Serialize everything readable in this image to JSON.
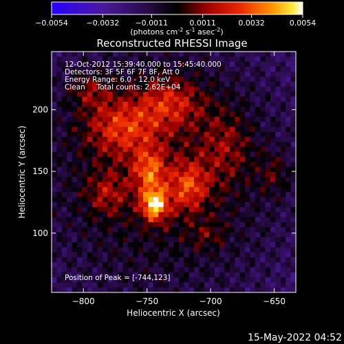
{
  "colorbar": {
    "ticks": [
      "-0.0054",
      "-0.0032",
      "-0.0011",
      "0.0011",
      "0.0032",
      "0.0054"
    ],
    "unit_text": "(photons cm",
    "unit_sup1": "-2",
    "unit_mid": " s",
    "unit_sup2": "-1",
    "unit_end": " asec",
    "unit_sup3": "-2",
    "unit_close": ")"
  },
  "chart_data": {
    "type": "heatmap",
    "title": "Reconstructed RHESSI Image",
    "xlabel": "Heliocentric X (arcsec)",
    "ylabel": "Heliocentric Y (arcsec)",
    "xlim": [
      -825,
      -633
    ],
    "ylim": [
      52,
      247
    ],
    "x_ticks": [
      -800,
      -750,
      -700,
      -650
    ],
    "y_ticks": [
      100,
      150,
      200
    ],
    "x_tick_labels": [
      "−800",
      "−750",
      "−700",
      "−650"
    ],
    "y_tick_labels": [
      "100",
      "150",
      "200"
    ],
    "clim": [
      -0.0054,
      0.0054
    ],
    "colormap": "rhessi-purple-red-yellow-white",
    "peak": [
      -744,
      123
    ],
    "annotations": [
      "12-Oct-2012 15:39:40.000 to 15:45:40.000",
      "Detectors: 3F 5F 6F 7F 8F, Att 0",
      "Energy Range: 6.0 - 12.0 keV",
      "Clean     Total counts: 2.62E+04",
      "Position of Peak = [-744,123]"
    ],
    "sources": [
      {
        "x": -744,
        "y": 123,
        "amp": 0.0052,
        "sx": 7,
        "sy": 9
      },
      {
        "x": -748,
        "y": 150,
        "amp": 0.0034,
        "sx": 9,
        "sy": 13
      },
      {
        "x": -718,
        "y": 138,
        "amp": 0.003,
        "sx": 11,
        "sy": 14
      },
      {
        "x": -770,
        "y": 186,
        "amp": 0.0029,
        "sx": 20,
        "sy": 16
      },
      {
        "x": -732,
        "y": 206,
        "amp": 0.0026,
        "sx": 18,
        "sy": 14
      },
      {
        "x": -782,
        "y": 132,
        "amp": 0.0018,
        "sx": 11,
        "sy": 12
      },
      {
        "x": -688,
        "y": 170,
        "amp": 0.0016,
        "sx": 14,
        "sy": 22
      },
      {
        "x": -650,
        "y": 148,
        "amp": 0.0014,
        "sx": 9,
        "sy": 12
      },
      {
        "x": -702,
        "y": 98,
        "amp": 0.0012,
        "sx": 10,
        "sy": 8
      },
      {
        "x": -795,
        "y": 215,
        "amp": 0.0018,
        "sx": 12,
        "sy": 10
      }
    ]
  },
  "footer": {
    "timestamp": "15-May-2022 04:52"
  }
}
